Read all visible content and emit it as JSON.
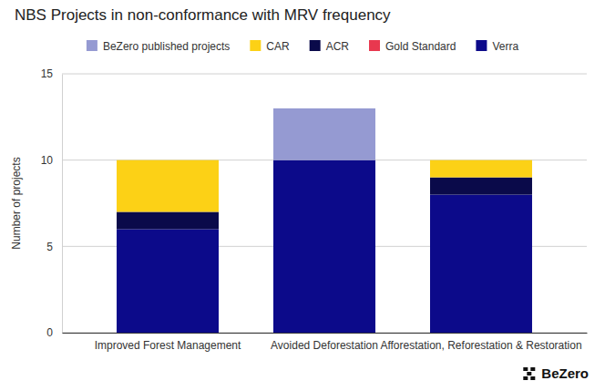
{
  "chart_data": {
    "type": "bar",
    "title": "NBS Projects in non-conformance with MRV frequency",
    "y_label": "Number of projects",
    "categories": [
      "Improved Forest Management",
      "Avoided Deforestation",
      "Afforestation, Reforestation & Restoration"
    ],
    "series": [
      {
        "name": "BeZero published projects",
        "color": "#959ad2",
        "values": [
          0,
          3,
          0
        ]
      },
      {
        "name": "CAR",
        "color": "#fcd116",
        "values": [
          3,
          0,
          1
        ]
      },
      {
        "name": "ACR",
        "color": "#0a0a4a",
        "values": [
          1,
          0,
          1
        ]
      },
      {
        "name": "Gold Standard",
        "color": "#e8384f",
        "values": [
          0,
          0,
          0
        ]
      },
      {
        "name": "Verra",
        "color": "#0c0a8a",
        "values": [
          6,
          10,
          8
        ]
      }
    ],
    "stacked": true,
    "ylim": [
      0,
      15
    ],
    "yticks": [
      0,
      5,
      10,
      15
    ],
    "grid": true,
    "legend": "top",
    "annotations": [
      "BeZero"
    ]
  }
}
